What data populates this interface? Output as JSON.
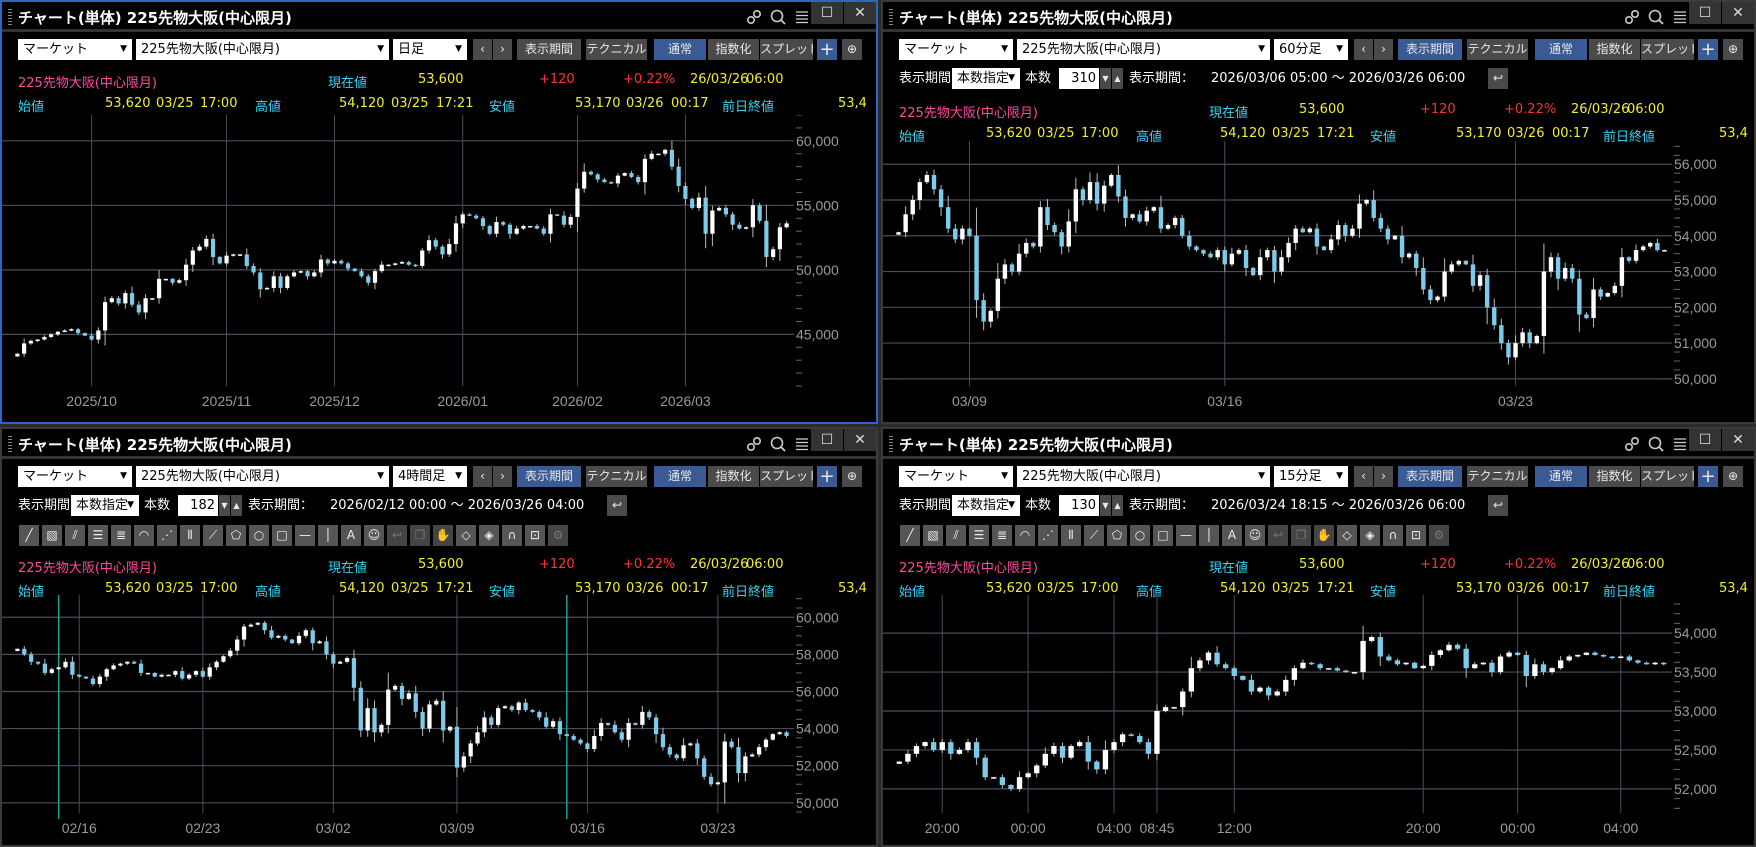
{
  "controls": {
    "market": "マーケット",
    "period": "表示期間",
    "technical": "テクニカル",
    "normal": "通常",
    "index": "指数化",
    "spread": "スプレッド",
    "prev": "‹",
    "next": "›",
    "add": "+",
    "period_label": "表示期間",
    "count_label": "本数",
    "range_label": "表示期間："
  },
  "quote": {
    "name": "225先物大阪(中心限月)",
    "current_label": "現在値",
    "current": "53,600",
    "change": "+120",
    "change_pct": "+0.22%",
    "date": "26/03/26",
    "time": "06:00",
    "open_label": "始値",
    "open": "53,620",
    "open_date": "03/25",
    "open_time": "17:00",
    "high_label": "高値",
    "high": "54,120",
    "high_date": "03/25",
    "high_time": "17:21",
    "low_label": "安値",
    "low": "53,170",
    "low_date": "03/26",
    "low_time": "00:17",
    "prev_close_label": "前日終値",
    "prev_close": "53,4"
  },
  "tools": [
    "line",
    "channel-pen",
    "parallel-lines",
    "horizontal-lines",
    "multi-lines",
    "fib-arc",
    "fib-fan",
    "vertical-lines",
    "speed-lines",
    "pentagon",
    "circle",
    "rectangle",
    "horizontal-line",
    "vertical-line",
    "text",
    "icon-stamp",
    "undo",
    "copy",
    "hand",
    "eraser",
    "text-eraser",
    "magnet",
    "lock-pen",
    "settings"
  ],
  "colors": {
    "up": "#ffffff",
    "down": "#7ccbeb",
    "grid": "#4a4d5c",
    "marker": "#1aa39a",
    "active_border": "#2f63c4"
  },
  "panels": [
    {
      "title": "チャート(単体) 225先物大阪(中心限月)",
      "symbol": "225先物大阪(中心限月)",
      "interval": "日足",
      "active": true
    },
    {
      "title": "チャート(単体) 225先物大阪(中心限月)",
      "symbol": "225先物大阪(中心限月)",
      "interval": "60分足",
      "mode": "本数指定",
      "count": "310",
      "range": "2026/03/06 05:00 ～ 2026/03/26 06:00"
    },
    {
      "title": "チャート(単体) 225先物大阪(中心限月)",
      "symbol": "225先物大阪(中心限月)",
      "interval": "4時間足",
      "mode": "本数指定",
      "count": "182",
      "range": "2026/02/12 00:00 ～ 2026/03/26 04:00"
    },
    {
      "title": "チャート(単体) 225先物大阪(中心限月)",
      "symbol": "225先物大阪(中心限月)",
      "interval": "15分足",
      "mode": "本数指定",
      "count": "130",
      "range": "2026/03/24 18:15 ～ 2026/03/26 06:00"
    }
  ],
  "chart_data": [
    {
      "type": "candlestick",
      "ylim": [
        41000,
        62000
      ],
      "yticks": [
        45000,
        50000,
        55000,
        60000
      ],
      "minor_step": 1000,
      "xticks": [
        {
          "label": "2025/10",
          "index": 11
        },
        {
          "label": "2025/11",
          "index": 31
        },
        {
          "label": "2025/12",
          "index": 47
        },
        {
          "label": "2026/01",
          "index": 66
        },
        {
          "label": "2026/02",
          "index": 83
        },
        {
          "label": "2026/03",
          "index": 99
        }
      ],
      "markers": [],
      "closes": [
        43500,
        44300,
        44500,
        44600,
        44800,
        45000,
        45200,
        45300,
        45400,
        45100,
        44900,
        44600,
        45300,
        47500,
        47800,
        47400,
        48200,
        47300,
        46700,
        47800,
        47800,
        49300,
        49300,
        49000,
        49200,
        50400,
        51500,
        51800,
        52400,
        51000,
        50500,
        51100,
        51200,
        51200,
        50300,
        49800,
        48500,
        48600,
        49500,
        48600,
        49500,
        49800,
        49900,
        49500,
        49800,
        50800,
        50500,
        50700,
        50500,
        50100,
        49900,
        49500,
        49000,
        49900,
        50400,
        50400,
        50500,
        50600,
        50400,
        50300,
        51500,
        52300,
        51800,
        51200,
        52000,
        53600,
        54300,
        54200,
        54000,
        53400,
        52800,
        53700,
        53500,
        52800,
        53200,
        53400,
        53400,
        53200,
        52800,
        54300,
        54200,
        53500,
        54100,
        56300,
        57600,
        57400,
        57000,
        56800,
        56700,
        57300,
        57500,
        57200,
        56800,
        58600,
        59000,
        59000,
        59300,
        58000,
        56500,
        55500,
        54800,
        55600,
        52800,
        54600,
        54800,
        54300,
        53500,
        53200,
        53300,
        55000,
        53800,
        51000,
        51600,
        53300,
        53600
      ]
    },
    {
      "type": "candlestick",
      "ylim": [
        49800,
        56650
      ],
      "yticks": [
        50000,
        51000,
        52000,
        53000,
        54000,
        55000,
        56000
      ],
      "minor_step": 250,
      "xticks": [
        {
          "label": "03/09",
          "index": 10
        },
        {
          "label": "03/16",
          "index": 46
        },
        {
          "label": "03/23",
          "index": 87
        }
      ],
      "markers": [],
      "closes": [
        54100,
        54600,
        55000,
        55500,
        55700,
        55300,
        54800,
        54200,
        53900,
        54200,
        54000,
        52200,
        51600,
        51900,
        52800,
        53200,
        53000,
        53500,
        53800,
        53700,
        54800,
        54300,
        54100,
        53700,
        54400,
        55300,
        55000,
        55500,
        54900,
        55400,
        55700,
        55100,
        54500,
        54600,
        54400,
        54700,
        54800,
        54200,
        54300,
        54500,
        54000,
        53700,
        53600,
        53500,
        53400,
        53600,
        53200,
        53500,
        53600,
        53100,
        52900,
        53400,
        53600,
        53000,
        53400,
        53800,
        54200,
        54100,
        54200,
        53700,
        53600,
        53900,
        54300,
        54000,
        54200,
        54900,
        55000,
        54500,
        54200,
        53900,
        54000,
        53400,
        53500,
        53100,
        52500,
        52200,
        52300,
        53000,
        53200,
        53300,
        53200,
        52600,
        52900,
        52000,
        51500,
        51000,
        50600,
        51000,
        51300,
        51000,
        51200,
        53000,
        53400,
        52800,
        53100,
        52800,
        51800,
        51700,
        52500,
        52300,
        52400,
        52600,
        53400,
        53300,
        53600,
        53700,
        53800,
        53600,
        53600
      ]
    },
    {
      "type": "candlestick",
      "ylim": [
        49450,
        61200
      ],
      "yticks": [
        50000,
        52000,
        54000,
        56000,
        58000,
        60000
      ],
      "minor_step": 500,
      "xticks": [
        {
          "label": "02/16",
          "index": 9
        },
        {
          "label": "02/23",
          "index": 27
        },
        {
          "label": "03/02",
          "index": 46
        },
        {
          "label": "03/09",
          "index": 64
        },
        {
          "label": "03/16",
          "index": 83
        },
        {
          "label": "03/23",
          "index": 102
        }
      ],
      "markers": [
        6,
        80
      ],
      "closes": [
        58300,
        58000,
        57600,
        57500,
        57000,
        57200,
        57300,
        57600,
        56900,
        56800,
        56700,
        56400,
        56800,
        57200,
        57400,
        57500,
        57600,
        57500,
        57000,
        57000,
        56800,
        56900,
        56900,
        57100,
        56700,
        56900,
        57100,
        56800,
        57300,
        57600,
        57900,
        58200,
        58800,
        59500,
        59600,
        59700,
        59300,
        58900,
        59000,
        58800,
        58600,
        59000,
        59300,
        58600,
        58700,
        58000,
        57500,
        57600,
        57800,
        56200,
        53900,
        55100,
        53800,
        54200,
        56100,
        56300,
        55600,
        55900,
        54900,
        54000,
        55300,
        55500,
        53900,
        54100,
        51900,
        52500,
        53200,
        53800,
        54600,
        54200,
        55100,
        55200,
        55000,
        55400,
        55000,
        54900,
        54600,
        54100,
        54400,
        53700,
        53600,
        53400,
        53200,
        52900,
        53600,
        54300,
        54200,
        53800,
        53400,
        54300,
        54200,
        54900,
        54600,
        53700,
        53000,
        52600,
        52400,
        53100,
        53200,
        52400,
        51400,
        51000,
        51100,
        53300,
        53000,
        51600,
        52500,
        52600,
        53000,
        53400,
        53700,
        53800,
        53600
      ]
    },
    {
      "type": "candlestick",
      "ylim": [
        51690,
        54490
      ],
      "yticks": [
        52000,
        52500,
        53000,
        53500,
        54000
      ],
      "minor_step": 125,
      "xticks": [
        {
          "label": "20:00",
          "index": 5
        },
        {
          "label": "00:00",
          "index": 15
        },
        {
          "label": "04:00",
          "index": 25
        },
        {
          "label": "08:45",
          "index": 30
        },
        {
          "label": "12:00",
          "index": 39
        },
        {
          "label": "20:00",
          "index": 61
        },
        {
          "label": "00:00",
          "index": 72
        },
        {
          "label": "04:00",
          "index": 84
        }
      ],
      "markers": [],
      "closes": [
        52350,
        52450,
        52550,
        52600,
        52500,
        52600,
        52450,
        52500,
        52600,
        52400,
        52150,
        52150,
        52050,
        52000,
        52150,
        52200,
        52300,
        52450,
        52550,
        52400,
        52550,
        52600,
        52350,
        52250,
        52500,
        52600,
        52700,
        52680,
        52600,
        52450,
        53000,
        53050,
        53050,
        53250,
        53550,
        53650,
        53750,
        53600,
        53550,
        53450,
        53400,
        53250,
        53300,
        53200,
        53250,
        53400,
        53550,
        53620,
        53600,
        53550,
        53550,
        53520,
        53500,
        53500,
        53900,
        53950,
        53700,
        53650,
        53600,
        53620,
        53550,
        53580,
        53720,
        53780,
        53850,
        53800,
        53550,
        53600,
        53620,
        53500,
        53700,
        53750,
        53720,
        53450,
        53600,
        53500,
        53550,
        53650,
        53700,
        53720,
        53750,
        53720,
        53700,
        53680,
        53700,
        53650,
        53620,
        53600,
        53620,
        53600
      ]
    }
  ]
}
